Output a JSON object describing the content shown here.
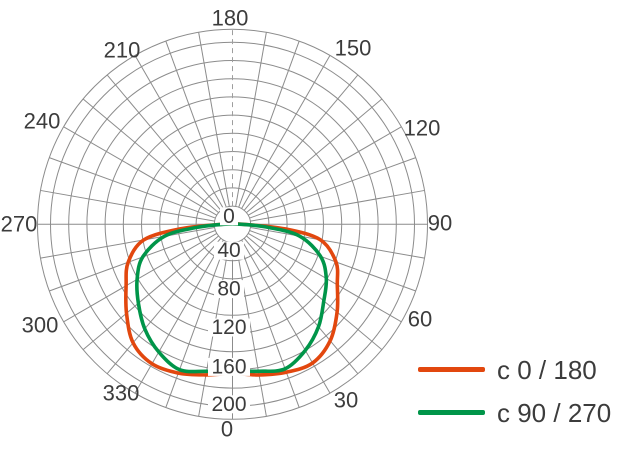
{
  "chart_data": {
    "type": "line",
    "projection": "polar",
    "description": "Polar photometric diagram (luminous intensity distribution curve); 0° at bottom (nadir), angles every 30°, radial intensity rings every 20 up to 200",
    "angle_tick_labels": [
      "0",
      "30",
      "60",
      "90",
      "120",
      "150",
      "180",
      "210",
      "240",
      "270",
      "300",
      "330"
    ],
    "angle_tick_values": [
      0,
      30,
      60,
      90,
      120,
      150,
      180,
      210,
      240,
      270,
      300,
      330
    ],
    "radial_tick_labels": [
      "0",
      "40",
      "80",
      "120",
      "160",
      "200"
    ],
    "radial_tick_values": [
      0,
      40,
      80,
      120,
      160,
      200
    ],
    "radial_max": 200,
    "ring_step": 20,
    "spoke_step_deg": 10,
    "grid": true,
    "legend_position": "bottom-right",
    "series": [
      {
        "name": "c 0 / 180",
        "color": "#e2470e",
        "gamma_deg": [
          0,
          10,
          20,
          30,
          40,
          50,
          60,
          70,
          80,
          85,
          90
        ],
        "values_right": [
          164,
          168,
          173,
          176,
          167,
          150,
          133,
          121,
          98,
          58,
          12
        ],
        "values_left": [
          164,
          168,
          174,
          177,
          170,
          152,
          135,
          122,
          99,
          58,
          12
        ]
      },
      {
        "name": "c 90 / 270",
        "color": "#009549",
        "gamma_deg": [
          0,
          10,
          20,
          30,
          40,
          50,
          60,
          70,
          80,
          85,
          90
        ],
        "values_right": [
          161,
          164,
          169,
          160,
          147,
          131,
          119,
          103,
          75,
          40,
          10
        ],
        "values_left": [
          161,
          164,
          170,
          162,
          150,
          135,
          121,
          105,
          76,
          40,
          10
        ]
      }
    ]
  },
  "colors": {
    "grid": "#8c8c8c",
    "dashed_axis": "#9e9e9e",
    "text": "#3c3c3c",
    "background": "#ffffff"
  }
}
